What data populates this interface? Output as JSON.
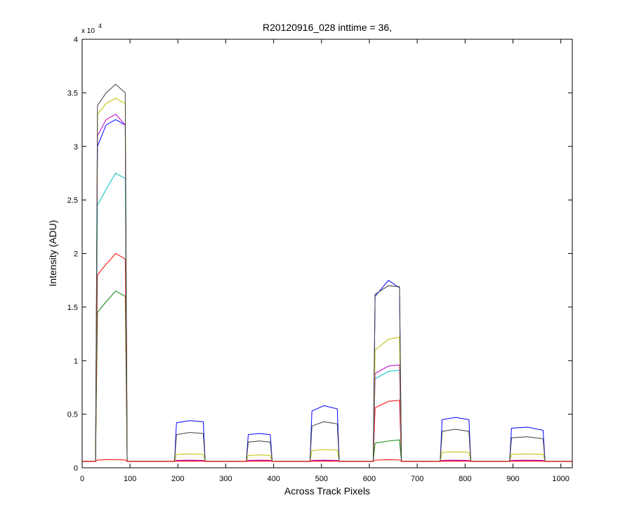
{
  "chart_data": {
    "type": "line",
    "title": "R20120916_028 inttime = 36,",
    "x_label": "Across Track Pixels",
    "y_label": "Intensity (ADU)",
    "y_multiplier": {
      "base": "x 10",
      "exponent": "4"
    },
    "xlim": [
      0,
      1024
    ],
    "ylim": [
      0,
      40000
    ],
    "xticks": [
      0,
      100,
      200,
      300,
      400,
      500,
      600,
      700,
      800,
      900,
      1000
    ],
    "yticks": [
      {
        "value": 0,
        "label": "0"
      },
      {
        "value": 5000,
        "label": "0.5"
      },
      {
        "value": 10000,
        "label": "1"
      },
      {
        "value": 15000,
        "label": "1.5"
      },
      {
        "value": 20000,
        "label": "2"
      },
      {
        "value": 25000,
        "label": "2.5"
      },
      {
        "value": 30000,
        "label": "3"
      },
      {
        "value": 35000,
        "label": "3.5"
      },
      {
        "value": 40000,
        "label": "4"
      }
    ],
    "grid": false,
    "x": [
      0,
      28,
      32,
      50,
      70,
      90,
      94,
      193,
      197,
      225,
      253,
      257,
      343,
      347,
      370,
      393,
      397,
      476,
      480,
      505,
      533,
      537,
      608,
      612,
      640,
      663,
      667,
      748,
      752,
      780,
      808,
      812,
      893,
      897,
      930,
      963,
      967,
      1024
    ],
    "series": [
      {
        "name": "s1",
        "color": "#0000ff",
        "values": [
          600,
          600,
          30000,
          32000,
          32500,
          32000,
          600,
          600,
          4200,
          4400,
          4300,
          600,
          600,
          3100,
          3200,
          3100,
          600,
          600,
          5300,
          5800,
          5500,
          600,
          600,
          16000,
          17500,
          16800,
          600,
          600,
          4500,
          4700,
          4500,
          600,
          600,
          3700,
          3800,
          3500,
          600,
          600
        ]
      },
      {
        "name": "s2",
        "color": "#008000",
        "values": [
          600,
          600,
          14500,
          15500,
          16500,
          16000,
          600,
          600,
          640,
          650,
          640,
          600,
          600,
          640,
          650,
          640,
          600,
          600,
          640,
          650,
          640,
          600,
          600,
          2300,
          2500,
          2600,
          600,
          600,
          640,
          650,
          640,
          600,
          600,
          640,
          650,
          640,
          600,
          600
        ]
      },
      {
        "name": "s3",
        "color": "#ff0000",
        "values": [
          600,
          600,
          18000,
          19000,
          20000,
          19500,
          600,
          600,
          690,
          700,
          690,
          600,
          600,
          690,
          700,
          690,
          600,
          600,
          690,
          700,
          690,
          600,
          600,
          5600,
          6200,
          6300,
          600,
          600,
          690,
          700,
          690,
          600,
          600,
          690,
          700,
          690,
          600,
          600
        ]
      },
      {
        "name": "s4",
        "color": "#00bfbf",
        "values": [
          600,
          600,
          24500,
          26000,
          27500,
          27000,
          600,
          600,
          640,
          650,
          640,
          600,
          600,
          640,
          650,
          640,
          600,
          600,
          640,
          650,
          640,
          600,
          600,
          8300,
          9000,
          9100,
          600,
          600,
          640,
          650,
          640,
          600,
          600,
          640,
          650,
          640,
          600,
          600
        ]
      },
      {
        "name": "s5",
        "color": "#bf00bf",
        "values": [
          600,
          600,
          31000,
          32500,
          33000,
          32000,
          600,
          600,
          690,
          700,
          690,
          600,
          600,
          690,
          700,
          690,
          600,
          600,
          690,
          700,
          690,
          600,
          600,
          8800,
          9500,
          9600,
          600,
          600,
          690,
          700,
          690,
          600,
          600,
          690,
          700,
          690,
          600,
          600
        ]
      },
      {
        "name": "s6",
        "color": "#bfbf00",
        "values": [
          600,
          600,
          33000,
          34000,
          34500,
          34000,
          600,
          600,
          1250,
          1300,
          1250,
          600,
          600,
          1150,
          1200,
          1150,
          600,
          600,
          1600,
          1700,
          1650,
          600,
          600,
          11000,
          12000,
          12200,
          600,
          600,
          1450,
          1500,
          1450,
          600,
          600,
          1250,
          1300,
          1250,
          600,
          600
        ]
      },
      {
        "name": "s7",
        "color": "#404040",
        "values": [
          600,
          600,
          33800,
          35000,
          35800,
          35000,
          600,
          600,
          3100,
          3300,
          3200,
          600,
          600,
          2400,
          2500,
          2400,
          600,
          600,
          3900,
          4300,
          4100,
          600,
          600,
          16200,
          17000,
          16900,
          600,
          600,
          3400,
          3600,
          3400,
          600,
          600,
          2800,
          2900,
          2700,
          600,
          600
        ]
      },
      {
        "name": "s8",
        "color": "#ff0000",
        "values": [
          600,
          600,
          720,
          750,
          750,
          740,
          600,
          600,
          620,
          620,
          620,
          600,
          600,
          620,
          620,
          620,
          600,
          600,
          620,
          620,
          620,
          600,
          600,
          720,
          750,
          740,
          600,
          600,
          620,
          620,
          620,
          600,
          600,
          620,
          620,
          620,
          600,
          600
        ]
      }
    ]
  }
}
